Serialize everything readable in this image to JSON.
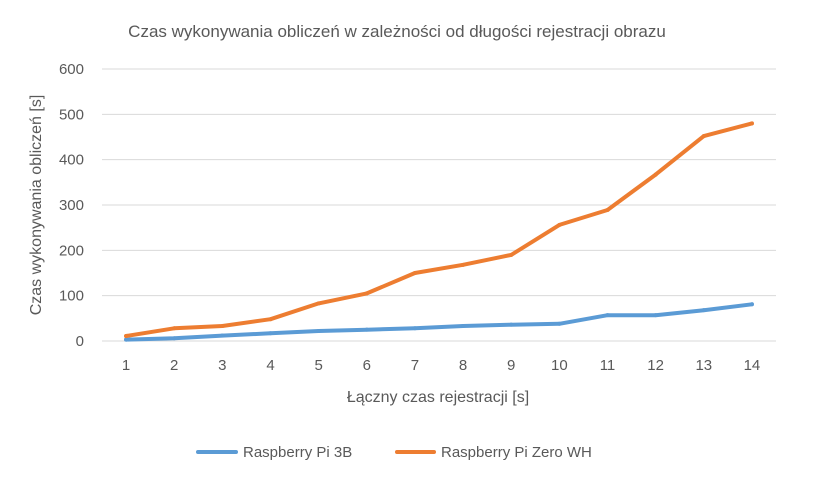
{
  "chart_data": {
    "type": "line",
    "title": "Czas wykonywania obliczeń  w zależności od długości rejestracji obrazu",
    "xlabel": "Łączny czas rejestracji [s]",
    "ylabel": "Czas wykonywania obliczeń [s]",
    "ylim": [
      0,
      600
    ],
    "yticks": [
      0,
      100,
      200,
      300,
      400,
      500,
      600
    ],
    "x": [
      1,
      2,
      3,
      4,
      5,
      6,
      7,
      8,
      9,
      10,
      11,
      12,
      13,
      14
    ],
    "grid": true,
    "legend_position": "bottom",
    "series": [
      {
        "name": "Raspberry Pi 3B",
        "color": "#5b9bd5",
        "values": [
          3,
          6,
          12,
          17,
          22,
          25,
          28,
          33,
          36,
          38,
          57,
          57,
          68,
          81
        ]
      },
      {
        "name": "Raspberry Pi Zero WH",
        "color": "#ed7d31",
        "values": [
          11,
          28,
          33,
          48,
          83,
          105,
          150,
          168,
          190,
          256,
          289,
          367,
          452,
          480
        ]
      }
    ]
  }
}
